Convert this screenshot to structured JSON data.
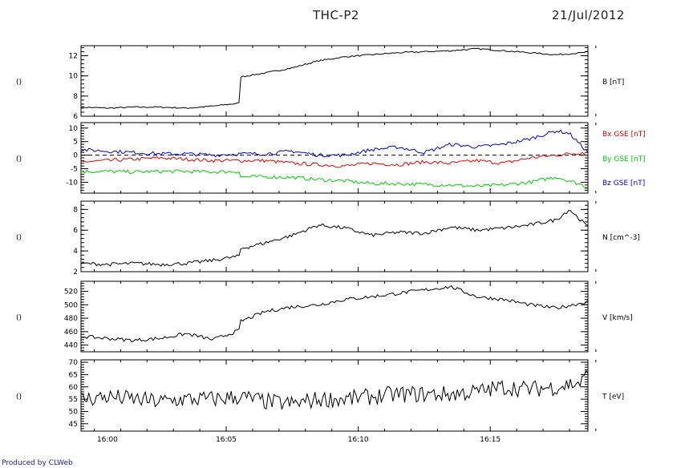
{
  "header": {
    "title": "THC-P2",
    "date": "21/Jul/2012",
    "credit": "Produced by CLWeb"
  },
  "colors": {
    "black": "#000000",
    "bx": "#dd0000",
    "by": "#00cc00",
    "bz": "#0000cc"
  },
  "chart_data": [
    {
      "type": "line",
      "left_label": "()",
      "ylim": [
        6,
        13
      ],
      "yticks": [
        6,
        8,
        10,
        12
      ],
      "yticklabels": [
        "6",
        "8",
        "10",
        "12"
      ],
      "series": [
        {
          "name": "B [nT]",
          "color": "#000000",
          "x": [
            0,
            1,
            2,
            3,
            4,
            5,
            6,
            6.02,
            7,
            8,
            9,
            10,
            11,
            12,
            13,
            14,
            15,
            16,
            17,
            18,
            19,
            19.2
          ],
          "y": [
            6.9,
            6.8,
            6.9,
            6.9,
            6.8,
            7.0,
            7.3,
            9.9,
            10.3,
            10.8,
            11.5,
            11.9,
            12.1,
            12.3,
            12.4,
            12.5,
            12.7,
            12.5,
            12.3,
            12.1,
            12.3,
            12.4
          ]
        }
      ],
      "xlim": [
        0,
        19.2
      ]
    },
    {
      "type": "line",
      "left_label": "()",
      "ylim": [
        -14,
        12
      ],
      "yticks": [
        -10,
        -5,
        0,
        5,
        10
      ],
      "yticklabels": [
        "-10",
        "-5",
        "0",
        "5",
        "10"
      ],
      "zero_line": true,
      "series": [
        {
          "name": "Bx GSE [nT]",
          "color": "#dd0000",
          "x": [
            0,
            1,
            2,
            3,
            4,
            5,
            6,
            7,
            8,
            9,
            10,
            11,
            12,
            13,
            14,
            15,
            16,
            17,
            18,
            19,
            19.2
          ],
          "y": [
            -2.5,
            -2,
            -1.5,
            -1,
            -1.5,
            -2,
            -2,
            -2,
            -3,
            -3.5,
            -4,
            -3,
            -3.5,
            -2.5,
            -3,
            -2,
            -3,
            -1,
            0,
            1,
            0
          ]
        },
        {
          "name": "By GSE [nT]",
          "color": "#00cc00",
          "x": [
            0,
            1,
            2,
            3,
            4,
            5,
            6,
            6.02,
            7,
            8,
            9,
            10,
            11,
            12,
            13,
            14,
            15,
            16,
            17,
            18,
            19,
            19.2
          ],
          "y": [
            -6,
            -6,
            -6.2,
            -6,
            -6,
            -6.2,
            -6,
            -8,
            -8,
            -8.2,
            -9,
            -9.5,
            -10.5,
            -10.5,
            -10.8,
            -11,
            -11.5,
            -11,
            -10,
            -8,
            -11,
            -12.5
          ]
        },
        {
          "name": "Bz GSE [nT]",
          "color": "#0000cc",
          "x": [
            0,
            1,
            2,
            3,
            4,
            5,
            6,
            7,
            8,
            9,
            10,
            11,
            12,
            13,
            14,
            15,
            16,
            17,
            18,
            18.5,
            19,
            19.2
          ],
          "y": [
            2,
            1.5,
            1,
            0.5,
            0.5,
            0,
            0.5,
            0.5,
            1.5,
            0,
            0,
            2,
            3,
            1,
            4,
            3,
            4,
            6,
            9,
            8,
            3,
            1
          ]
        }
      ],
      "xlim": [
        0,
        19.2
      ]
    },
    {
      "type": "line",
      "left_label": "()",
      "ylim": [
        2,
        8.8
      ],
      "yticks": [
        2,
        4,
        6,
        8
      ],
      "yticklabels": [
        "2",
        "4",
        "6",
        "8"
      ],
      "series": [
        {
          "name": "N [cm^-3]",
          "color": "#000000",
          "x": [
            0,
            1,
            2,
            3,
            4,
            5,
            6,
            6.02,
            7,
            8,
            9,
            10,
            11,
            12,
            13,
            14,
            15,
            16,
            17,
            18,
            18.5,
            19,
            19.2
          ],
          "y": [
            2.8,
            2.7,
            2.8,
            2.7,
            2.8,
            3.1,
            3.5,
            4.2,
            4.8,
            5.5,
            6.5,
            6.2,
            5.5,
            5.8,
            5.7,
            6.3,
            6.0,
            6.2,
            6.5,
            7.0,
            8.0,
            6.8,
            6.3
          ]
        }
      ],
      "xlim": [
        0,
        19.2
      ]
    },
    {
      "type": "line",
      "left_label": "()",
      "ylim": [
        430,
        535
      ],
      "yticks": [
        440,
        460,
        480,
        500,
        520
      ],
      "yticklabels": [
        "440",
        "460",
        "480",
        "500",
        "520"
      ],
      "series": [
        {
          "name": "V [km/s]",
          "color": "#000000",
          "x": [
            0,
            1,
            2,
            3,
            4,
            5,
            6,
            6.02,
            7,
            8,
            9,
            10,
            11,
            12,
            13,
            14,
            15,
            16,
            17,
            18,
            19,
            19.2
          ],
          "y": [
            453,
            450,
            447,
            450,
            457,
            448,
            462,
            475,
            490,
            497,
            500,
            508,
            512,
            517,
            522,
            527,
            512,
            508,
            500,
            495,
            503,
            505
          ]
        }
      ],
      "xlim": [
        0,
        19.2
      ]
    },
    {
      "type": "line",
      "left_label": "()",
      "ylim": [
        42,
        71
      ],
      "yticks": [
        45,
        50,
        55,
        60,
        65,
        70
      ],
      "yticklabels": [
        "45",
        "50",
        "55",
        "60",
        "65",
        "70"
      ],
      "series": [
        {
          "name": "T [eV]",
          "color": "#000000",
          "x": [
            0,
            1,
            2,
            3,
            4,
            5,
            6,
            7,
            8,
            9,
            10,
            11,
            12,
            13,
            14,
            15,
            16,
            17,
            18,
            19,
            19.2
          ],
          "y": [
            55,
            56,
            55,
            54,
            55,
            55,
            56,
            54,
            53,
            55,
            55,
            56,
            57,
            57,
            57,
            58,
            60,
            59,
            60,
            62,
            66
          ]
        }
      ],
      "xlim": [
        0,
        19.2
      ]
    }
  ],
  "xaxis": {
    "ticks": [
      1.0,
      5.5,
      10.5,
      15.5
    ],
    "ticklabels": [
      "16:00",
      "16:05",
      "16:10",
      "16:15"
    ]
  }
}
